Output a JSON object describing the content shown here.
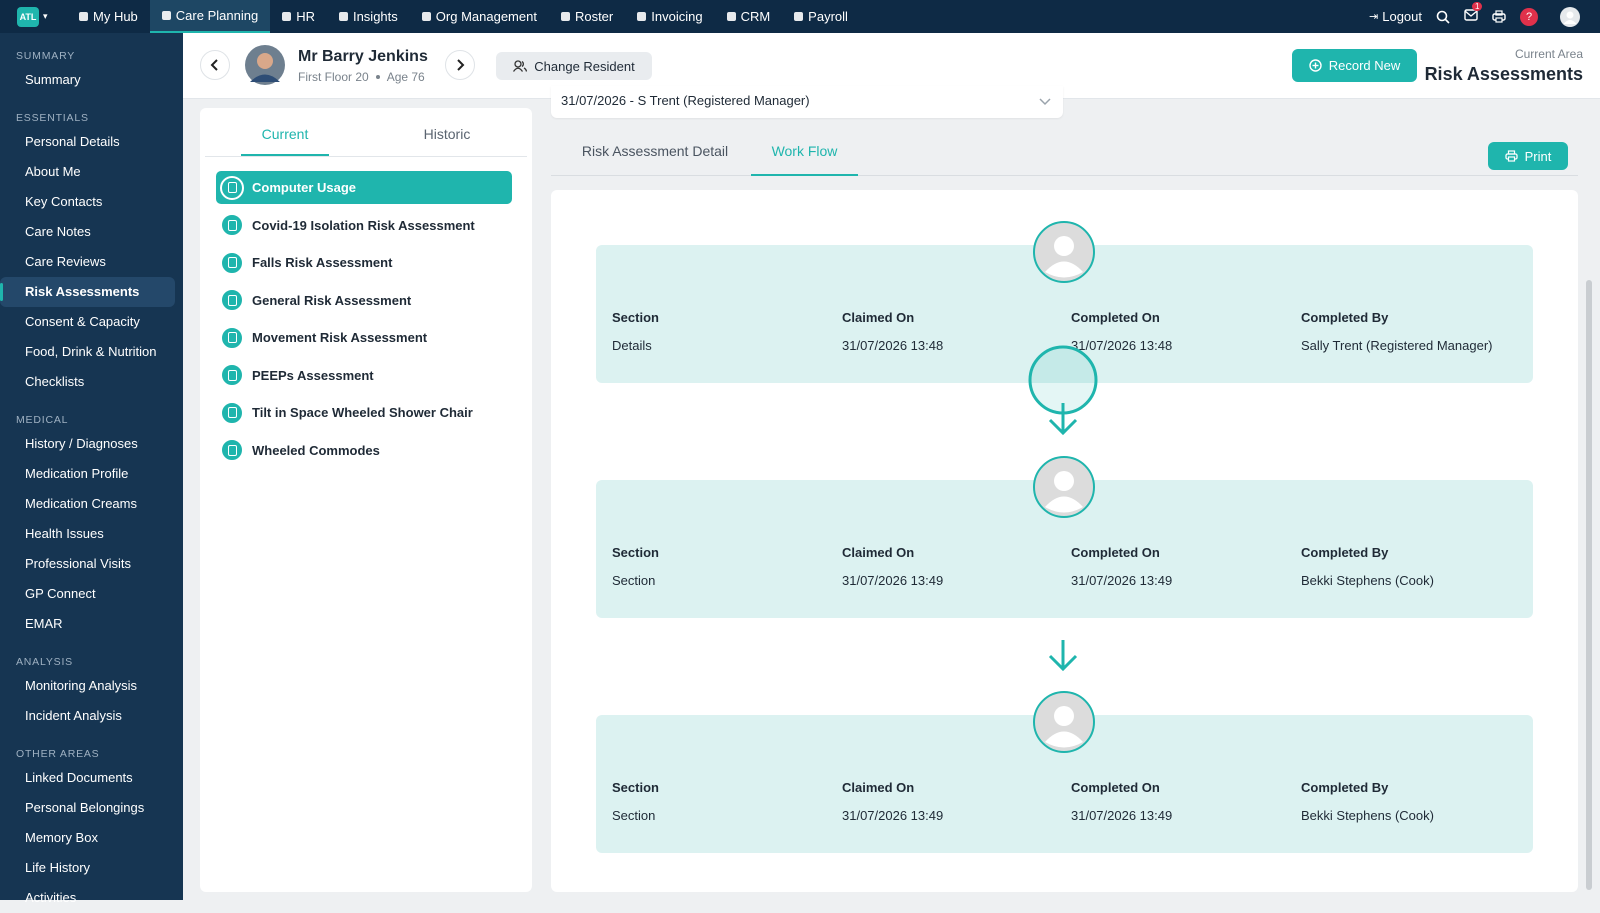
{
  "nav": {
    "logo": "ATL",
    "items": [
      "My Hub",
      "Care Planning",
      "HR",
      "Insights",
      "Org Management",
      "Roster",
      "Invoicing",
      "CRM",
      "Payroll"
    ],
    "active": 1,
    "logout": "Logout",
    "badge": "1",
    "help": "?"
  },
  "sidebar": {
    "sections": [
      {
        "title": "SUMMARY",
        "items": [
          "Summary"
        ]
      },
      {
        "title": "ESSENTIALS",
        "items": [
          "Personal Details",
          "About Me",
          "Key Contacts",
          "Care Notes",
          "Care Reviews",
          "Risk Assessments",
          "Consent & Capacity",
          "Food, Drink & Nutrition",
          "Checklists"
        ]
      },
      {
        "title": "MEDICAL",
        "items": [
          "History / Diagnoses",
          "Medication Profile",
          "Medication Creams",
          "Health Issues",
          "Professional Visits",
          "GP Connect",
          "EMAR"
        ]
      },
      {
        "title": "ANALYSIS",
        "items": [
          "Monitoring Analysis",
          "Incident Analysis"
        ]
      },
      {
        "title": "OTHER AREAS",
        "items": [
          "Linked Documents",
          "Personal Belongings",
          "Memory Box",
          "Life History",
          "Activities"
        ]
      }
    ]
  },
  "resident": {
    "name": "Mr Barry Jenkins",
    "location": "First Floor 20",
    "age": "Age 76",
    "change": "Change Resident"
  },
  "header": {
    "record_new": "Record New",
    "area_label": "Current Area",
    "area": "Risk Assessments"
  },
  "list_tabs": [
    "Current",
    "Historic"
  ],
  "assessments": [
    "Computer Usage",
    "Covid-19 Isolation Risk Assessment",
    "Falls Risk Assessment",
    "General Risk Assessment",
    "Movement Risk Assessment",
    "PEEPs Assessment",
    "Tilt in Space Wheeled Shower Chair",
    "Wheeled Commodes"
  ],
  "selected_version": "31/07/2026 - S Trent (Registered Manager)",
  "detail_tabs": [
    "Risk Assessment Detail",
    "Work Flow"
  ],
  "print": "Print",
  "workflow": {
    "columns": [
      "Section",
      "Claimed On",
      "Completed On",
      "Completed By"
    ],
    "steps": [
      [
        "Details",
        "31/07/2026 13:48",
        "31/07/2026 13:48",
        "Sally Trent (Registered Manager)"
      ],
      [
        "Section",
        "31/07/2026 13:49",
        "31/07/2026 13:49",
        "Bekki Stephens (Cook)"
      ],
      [
        "Section",
        "31/07/2026 13:49",
        "31/07/2026 13:49",
        "Bekki Stephens (Cook)"
      ]
    ]
  }
}
